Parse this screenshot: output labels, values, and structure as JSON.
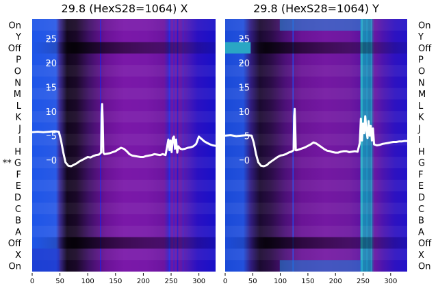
{
  "chart_data": [
    {
      "type": "heatmap",
      "title": "29.8 (HexS28=1064) X",
      "row_labels": [
        "On",
        "Y",
        "Off",
        "P",
        "O",
        "N",
        "M",
        "L",
        "K",
        "J",
        "I",
        "H",
        "** G",
        "F",
        "E",
        "D",
        "C",
        "B",
        "A",
        "Off",
        "X",
        "On"
      ],
      "x_ticks": [
        0,
        50,
        100,
        150,
        200,
        250,
        300
      ],
      "y_ticks": [
        0,
        5,
        10,
        15,
        20,
        25
      ],
      "xlim": [
        0,
        330
      ],
      "ylim": [
        -23,
        29
      ],
      "grid": false,
      "trace": {
        "color": "#ffffff",
        "x": [
          0,
          10,
          20,
          30,
          40,
          48,
          52,
          56,
          60,
          65,
          70,
          75,
          80,
          85,
          90,
          95,
          100,
          105,
          110,
          115,
          120,
          124,
          125,
          126,
          127,
          128,
          130,
          135,
          140,
          145,
          150,
          155,
          160,
          165,
          170,
          175,
          180,
          185,
          190,
          195,
          200,
          205,
          210,
          215,
          220,
          225,
          230,
          235,
          240,
          243,
          245,
          247,
          249,
          251,
          253,
          255,
          257,
          259,
          261,
          263,
          265,
          267,
          270,
          275,
          280,
          285,
          290,
          295,
          300,
          305,
          310,
          315,
          320,
          325,
          330
        ],
        "y": [
          5.7,
          5.8,
          5.7,
          5.8,
          5.9,
          5.8,
          4.0,
          1.5,
          -0.5,
          -1.2,
          -1.3,
          -1.0,
          -0.7,
          -0.3,
          0.0,
          0.3,
          0.6,
          0.5,
          0.8,
          1.0,
          1.1,
          1.5,
          9.5,
          11.5,
          8.0,
          1.5,
          1.2,
          1.3,
          1.4,
          1.6,
          1.8,
          2.2,
          2.5,
          2.3,
          1.8,
          1.2,
          0.9,
          0.8,
          0.7,
          0.6,
          0.6,
          0.8,
          0.9,
          1.0,
          1.2,
          1.1,
          1.0,
          1.2,
          1.0,
          2.8,
          4.2,
          2.0,
          4.0,
          1.6,
          4.5,
          4.8,
          2.3,
          4.2,
          1.5,
          2.8,
          2.5,
          2.3,
          2.2,
          2.3,
          2.5,
          2.6,
          2.8,
          3.3,
          4.8,
          4.3,
          3.8,
          3.5,
          3.2,
          3.0,
          2.9
        ]
      }
    },
    {
      "type": "heatmap",
      "title": "29.8 (HexS28=1064) Y",
      "row_labels": [
        "On",
        "Y",
        "Off",
        "P",
        "O",
        "N",
        "M",
        "L",
        "K",
        "J",
        "I",
        "H",
        "G",
        "F",
        "E",
        "D",
        "C",
        "B",
        "A",
        "Off",
        "X",
        "On"
      ],
      "x_ticks": [
        0,
        50,
        100,
        150,
        200,
        250,
        300
      ],
      "y_ticks": [
        0,
        5,
        10,
        15,
        20,
        25
      ],
      "xlim": [
        0,
        330
      ],
      "ylim": [
        -23,
        29
      ],
      "grid": false,
      "trace": {
        "color": "#ffffff",
        "x": [
          0,
          10,
          20,
          30,
          40,
          48,
          52,
          56,
          60,
          65,
          70,
          75,
          80,
          85,
          90,
          95,
          100,
          105,
          110,
          115,
          120,
          124,
          125,
          126,
          127,
          128,
          130,
          135,
          140,
          145,
          150,
          155,
          160,
          165,
          170,
          175,
          180,
          185,
          190,
          195,
          200,
          205,
          210,
          215,
          220,
          225,
          230,
          235,
          240,
          244,
          246,
          248,
          250,
          252,
          254,
          256,
          258,
          260,
          262,
          264,
          266,
          268,
          270,
          275,
          280,
          285,
          290,
          295,
          300,
          305,
          310,
          315,
          320,
          325,
          330
        ],
        "y": [
          5.0,
          5.1,
          4.9,
          5.0,
          5.1,
          5.0,
          3.5,
          1.2,
          -0.5,
          -1.2,
          -1.3,
          -1.1,
          -0.6,
          -0.2,
          0.2,
          0.6,
          0.9,
          1.0,
          1.2,
          1.5,
          1.7,
          2.0,
          9.0,
          10.5,
          7.0,
          2.0,
          2.0,
          2.2,
          2.4,
          2.6,
          2.9,
          3.2,
          3.6,
          3.4,
          3.0,
          2.6,
          2.2,
          1.9,
          1.8,
          1.6,
          1.5,
          1.5,
          1.7,
          1.8,
          1.8,
          1.6,
          1.7,
          1.8,
          1.7,
          3.5,
          8.5,
          4.0,
          7.5,
          5.5,
          9.0,
          6.0,
          4.5,
          8.0,
          5.0,
          7.0,
          4.0,
          6.5,
          3.2,
          3.0,
          3.1,
          3.3,
          3.4,
          3.5,
          3.6,
          3.7,
          3.7,
          3.8,
          3.8,
          3.9,
          3.9
        ]
      }
    }
  ]
}
